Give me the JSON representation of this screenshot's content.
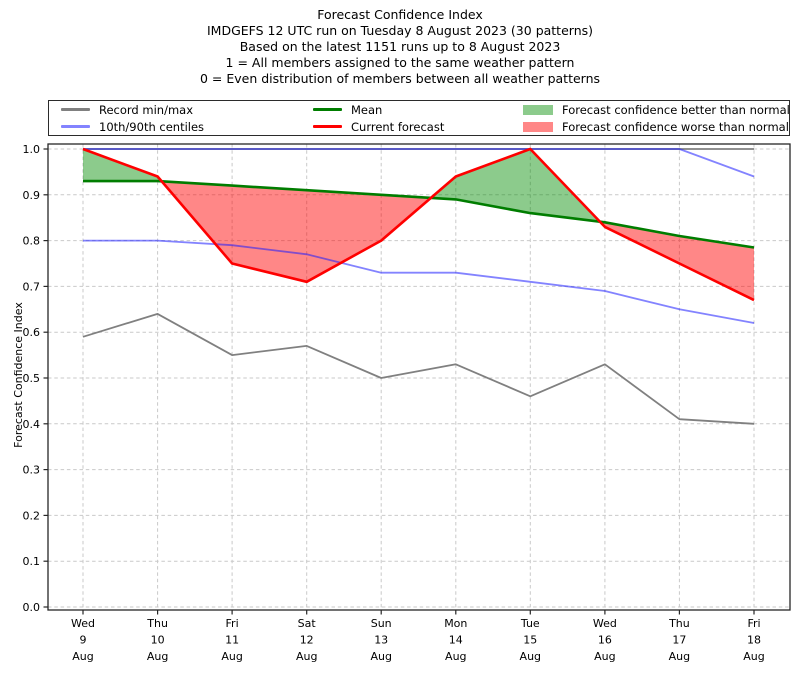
{
  "title": {
    "lines": [
      "Forecast Confidence Index",
      "IMDGEFS 12 UTC run on Tuesday 8 August 2023 (30 patterns)",
      "Based on the latest 1151 runs up to 8 August 2023",
      "1 = All members assigned to the same weather pattern",
      "0 = Even distribution of members between all weather patterns"
    ]
  },
  "legend": {
    "items": [
      {
        "label": "Record min/max",
        "type": "line",
        "color_key": "record"
      },
      {
        "label": "10th/90th centiles",
        "type": "line",
        "color_key": "centiles"
      },
      {
        "label": "Mean",
        "type": "line",
        "color_key": "mean"
      },
      {
        "label": "Current forecast",
        "type": "line",
        "color_key": "current"
      },
      {
        "label": "Forecast confidence better than normal",
        "type": "patch",
        "color_key": "fill_better"
      },
      {
        "label": "Forecast confidence worse than normal",
        "type": "patch",
        "color_key": "fill_worse"
      }
    ]
  },
  "colors": {
    "record": "#808080",
    "centiles": "rgba(30,30,255,0.55)",
    "mean": "#007d00",
    "current": "#fe0000",
    "fill_better": "rgba(0,140,0,0.45)",
    "fill_worse": "rgba(255,0,0,0.47)",
    "grid": "#c9c9c9",
    "axis": "#262626"
  },
  "chart_data": {
    "type": "line",
    "title": "Forecast Confidence Index",
    "xlabel": "",
    "ylabel": "Forecast Confidence Index",
    "ylim": [
      0.0,
      1.0
    ],
    "y_ticks": [
      0.0,
      0.1,
      0.2,
      0.3,
      0.4,
      0.5,
      0.6,
      0.7,
      0.8,
      0.9,
      1.0
    ],
    "grid": true,
    "legend_position": "top",
    "x_categories": [
      [
        "Wed",
        "9",
        "Aug"
      ],
      [
        "Thu",
        "10",
        "Aug"
      ],
      [
        "Fri",
        "11",
        "Aug"
      ],
      [
        "Sat",
        "12",
        "Aug"
      ],
      [
        "Sun",
        "13",
        "Aug"
      ],
      [
        "Mon",
        "14",
        "Aug"
      ],
      [
        "Tue",
        "15",
        "Aug"
      ],
      [
        "Wed",
        "16",
        "Aug"
      ],
      [
        "Thu",
        "17",
        "Aug"
      ],
      [
        "Fri",
        "18",
        "Aug"
      ]
    ],
    "series": [
      {
        "name": "Record max",
        "color_key": "record",
        "values": [
          1.0,
          1.0,
          1.0,
          1.0,
          1.0,
          1.0,
          1.0,
          1.0,
          1.0,
          1.0
        ]
      },
      {
        "name": "Record min",
        "color_key": "record",
        "values": [
          0.59,
          0.64,
          0.55,
          0.57,
          0.5,
          0.53,
          0.46,
          0.53,
          0.41,
          0.4
        ]
      },
      {
        "name": "90th centile",
        "color_key": "centiles",
        "values": [
          1.0,
          1.0,
          1.0,
          1.0,
          1.0,
          1.0,
          1.0,
          1.0,
          1.0,
          0.94
        ]
      },
      {
        "name": "10th centile",
        "color_key": "centiles",
        "values": [
          0.8,
          0.8,
          0.79,
          0.77,
          0.73,
          0.73,
          0.71,
          0.69,
          0.65,
          0.62
        ]
      },
      {
        "name": "Mean",
        "color_key": "mean",
        "values": [
          0.93,
          0.93,
          0.92,
          0.91,
          0.9,
          0.89,
          0.86,
          0.84,
          0.81,
          0.785
        ]
      },
      {
        "name": "Current forecast",
        "color_key": "current",
        "values": [
          1.0,
          0.94,
          0.75,
          0.71,
          0.8,
          0.94,
          1.0,
          0.83,
          0.75,
          0.67
        ]
      }
    ],
    "bands": [
      {
        "upper": "Current forecast",
        "lower": "Mean",
        "positive_color_key": "fill_better",
        "negative_color_key": "fill_worse"
      }
    ]
  }
}
